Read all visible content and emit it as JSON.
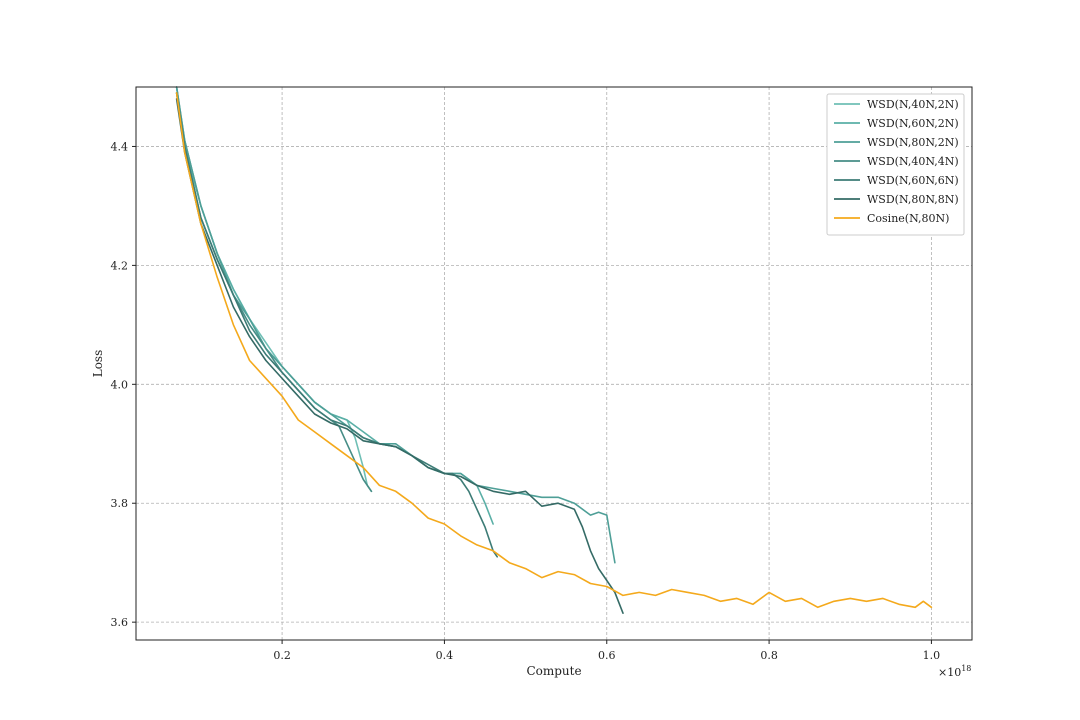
{
  "chart_data": {
    "type": "line",
    "title": "",
    "xlabel": "Compute",
    "ylabel": "Loss",
    "x_scale_label": "×10",
    "x_scale_exponent": "18",
    "xlim": [
      0.02,
      1.05
    ],
    "ylim": [
      3.57,
      4.5
    ],
    "x_ticks": [
      0.2,
      0.4,
      0.6,
      0.8,
      1.0
    ],
    "x_tick_labels": [
      "0.2",
      "0.4",
      "0.6",
      "0.8",
      "1.0"
    ],
    "y_ticks": [
      3.6,
      3.8,
      4.0,
      4.2,
      4.4
    ],
    "y_tick_labels": [
      "3.6",
      "3.8",
      "4.0",
      "4.2",
      "4.4"
    ],
    "grid": true,
    "legend_position": "top-right",
    "series": [
      {
        "name": "WSD(N,40N,2N)",
        "color": "#6fbfb5",
        "x": [
          0.07,
          0.08,
          0.1,
          0.12,
          0.14,
          0.16,
          0.18,
          0.2,
          0.22,
          0.24,
          0.26,
          0.28,
          0.29,
          0.3,
          0.305,
          0.31
        ],
        "y": [
          4.5,
          4.4,
          4.3,
          4.22,
          4.16,
          4.11,
          4.07,
          4.03,
          4.0,
          3.97,
          3.95,
          3.94,
          3.91,
          3.86,
          3.83,
          3.82
        ]
      },
      {
        "name": "WSD(N,60N,2N)",
        "color": "#5aafa6",
        "x": [
          0.07,
          0.08,
          0.1,
          0.12,
          0.14,
          0.16,
          0.18,
          0.2,
          0.22,
          0.24,
          0.26,
          0.28,
          0.3,
          0.32,
          0.34,
          0.36,
          0.38,
          0.4,
          0.42,
          0.44,
          0.45,
          0.46
        ],
        "y": [
          4.5,
          4.41,
          4.3,
          4.22,
          4.16,
          4.11,
          4.06,
          4.03,
          4.0,
          3.97,
          3.95,
          3.94,
          3.92,
          3.9,
          3.895,
          3.88,
          3.86,
          3.85,
          3.85,
          3.83,
          3.8,
          3.765
        ]
      },
      {
        "name": "WSD(N,80N,2N)",
        "color": "#4e9f97",
        "x": [
          0.07,
          0.08,
          0.1,
          0.12,
          0.14,
          0.16,
          0.18,
          0.2,
          0.22,
          0.24,
          0.26,
          0.28,
          0.3,
          0.32,
          0.34,
          0.36,
          0.38,
          0.4,
          0.42,
          0.44,
          0.46,
          0.48,
          0.5,
          0.52,
          0.54,
          0.56,
          0.58,
          0.59,
          0.6,
          0.605,
          0.61
        ],
        "y": [
          4.5,
          4.41,
          4.3,
          4.22,
          4.15,
          4.11,
          4.06,
          4.03,
          4.0,
          3.97,
          3.95,
          3.93,
          3.91,
          3.9,
          3.9,
          3.88,
          3.86,
          3.85,
          3.85,
          3.83,
          3.825,
          3.82,
          3.815,
          3.81,
          3.81,
          3.8,
          3.78,
          3.785,
          3.78,
          3.74,
          3.7
        ]
      },
      {
        "name": "WSD(N,40N,4N)",
        "color": "#468d86",
        "x": [
          0.07,
          0.08,
          0.1,
          0.12,
          0.14,
          0.16,
          0.18,
          0.2,
          0.22,
          0.24,
          0.26,
          0.27,
          0.28,
          0.29,
          0.3,
          0.31
        ],
        "y": [
          4.49,
          4.4,
          4.28,
          4.21,
          4.15,
          4.1,
          4.06,
          4.02,
          3.99,
          3.96,
          3.94,
          3.93,
          3.9,
          3.87,
          3.84,
          3.82
        ]
      },
      {
        "name": "WSD(N,60N,6N)",
        "color": "#3d7c76",
        "x": [
          0.07,
          0.08,
          0.1,
          0.12,
          0.14,
          0.16,
          0.18,
          0.2,
          0.22,
          0.24,
          0.26,
          0.28,
          0.3,
          0.32,
          0.34,
          0.36,
          0.38,
          0.4,
          0.41,
          0.42,
          0.43,
          0.44,
          0.45,
          0.46,
          0.465
        ],
        "y": [
          4.49,
          4.4,
          4.28,
          4.21,
          4.15,
          4.09,
          4.05,
          4.02,
          3.99,
          3.96,
          3.94,
          3.93,
          3.91,
          3.9,
          3.895,
          3.88,
          3.865,
          3.85,
          3.85,
          3.84,
          3.82,
          3.79,
          3.76,
          3.72,
          3.71
        ]
      },
      {
        "name": "WSD(N,80N,8N)",
        "color": "#356b66",
        "x": [
          0.07,
          0.08,
          0.1,
          0.12,
          0.14,
          0.16,
          0.18,
          0.2,
          0.22,
          0.24,
          0.26,
          0.28,
          0.3,
          0.32,
          0.34,
          0.36,
          0.38,
          0.4,
          0.42,
          0.44,
          0.46,
          0.48,
          0.5,
          0.52,
          0.54,
          0.56,
          0.57,
          0.58,
          0.59,
          0.6,
          0.61,
          0.62
        ],
        "y": [
          4.48,
          4.39,
          4.27,
          4.2,
          4.13,
          4.08,
          4.04,
          4.01,
          3.98,
          3.95,
          3.935,
          3.925,
          3.905,
          3.9,
          3.895,
          3.88,
          3.86,
          3.85,
          3.845,
          3.83,
          3.82,
          3.815,
          3.82,
          3.795,
          3.8,
          3.79,
          3.76,
          3.72,
          3.69,
          3.67,
          3.65,
          3.615
        ]
      },
      {
        "name": "Cosine(N,80N)",
        "color": "#f4a91c",
        "x": [
          0.07,
          0.08,
          0.1,
          0.12,
          0.14,
          0.16,
          0.18,
          0.2,
          0.22,
          0.24,
          0.26,
          0.28,
          0.3,
          0.32,
          0.34,
          0.36,
          0.38,
          0.4,
          0.42,
          0.44,
          0.46,
          0.48,
          0.5,
          0.52,
          0.54,
          0.56,
          0.58,
          0.6,
          0.62,
          0.64,
          0.66,
          0.68,
          0.7,
          0.72,
          0.74,
          0.76,
          0.78,
          0.8,
          0.82,
          0.84,
          0.86,
          0.88,
          0.9,
          0.92,
          0.94,
          0.96,
          0.98,
          0.99,
          1.0
        ],
        "y": [
          4.49,
          4.39,
          4.27,
          4.18,
          4.1,
          4.04,
          4.01,
          3.98,
          3.94,
          3.92,
          3.9,
          3.88,
          3.86,
          3.83,
          3.82,
          3.8,
          3.775,
          3.765,
          3.745,
          3.73,
          3.72,
          3.7,
          3.69,
          3.675,
          3.685,
          3.68,
          3.665,
          3.66,
          3.645,
          3.65,
          3.645,
          3.655,
          3.65,
          3.645,
          3.635,
          3.64,
          3.63,
          3.65,
          3.635,
          3.64,
          3.625,
          3.635,
          3.64,
          3.635,
          3.64,
          3.63,
          3.625,
          3.635,
          3.625
        ]
      }
    ]
  }
}
